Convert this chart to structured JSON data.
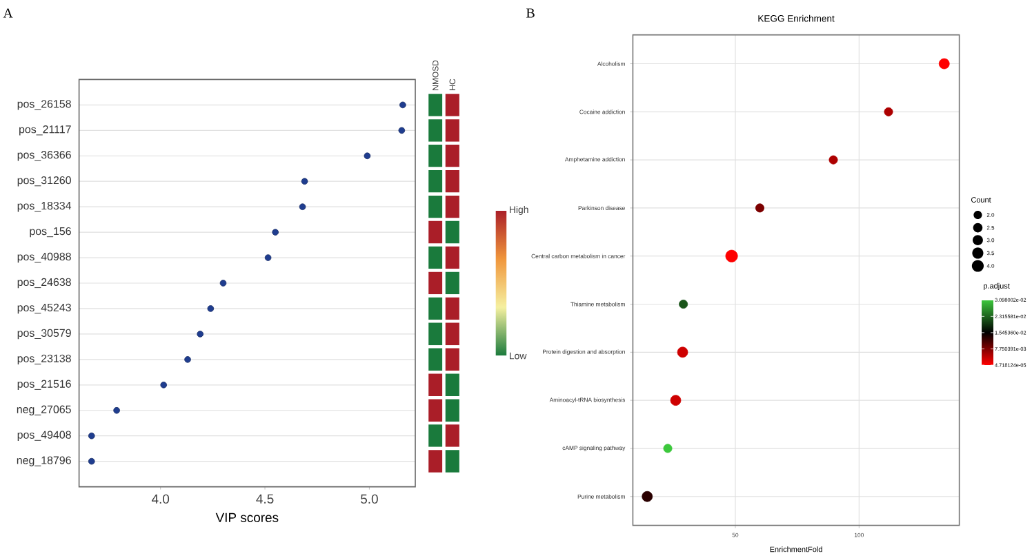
{
  "chart_data": [
    {
      "type": "scatter",
      "orientation": "horizontal",
      "annotations": [
        "A"
      ],
      "xlabel": "VIP scores",
      "categories": [
        "pos_26158",
        "pos_21117",
        "pos_36366",
        "pos_31260",
        "pos_18334",
        "pos_156",
        "pos_40988",
        "pos_24638",
        "pos_45243",
        "pos_30579",
        "pos_23138",
        "pos_21516",
        "neg_27065",
        "pos_49408",
        "neg_18796"
      ],
      "values": [
        5.16,
        5.155,
        4.99,
        4.69,
        4.68,
        4.55,
        4.515,
        4.3,
        4.24,
        4.19,
        4.13,
        4.015,
        3.79,
        3.67,
        3.67
      ],
      "color": "#1f3d8f",
      "marker": "circle",
      "grid": "y",
      "xlim": [
        3.61,
        5.22
      ],
      "xticks": [
        {
          "value": 4,
          "label": "4.0"
        },
        {
          "value": 4.5,
          "label": "4.5"
        },
        {
          "value": 5,
          "label": "5.0"
        }
      ]
    },
    {
      "type": "heatmap",
      "categories": [
        "NMOSD",
        "HC"
      ],
      "y_categories": [
        null,
        null,
        null,
        null,
        null,
        null,
        null,
        null,
        null,
        null,
        null,
        null,
        null,
        null,
        null
      ],
      "cells": [
        [
          0,
          1
        ],
        [
          0,
          1
        ],
        [
          0,
          1
        ],
        [
          0,
          1
        ],
        [
          0,
          1
        ],
        [
          1,
          0
        ],
        [
          0,
          1
        ],
        [
          1,
          0
        ],
        [
          0,
          1
        ],
        [
          0,
          1
        ],
        [
          0,
          1
        ],
        [
          1,
          0
        ],
        [
          1,
          0
        ],
        [
          0,
          1
        ],
        [
          1,
          0
        ]
      ],
      "clim": [
        0,
        1
      ],
      "cticks": [
        {
          "value": 0,
          "label": "Low"
        },
        {
          "value": 1,
          "label": "High"
        }
      ],
      "tick_labels": "x"
    },
    {
      "type": "bubble",
      "orientation": "horizontal",
      "title": "KEGG Enrichment",
      "xlabel": "EnrichmentFold",
      "annotations": [
        "B"
      ],
      "categories": [
        "Alcoholism",
        "Cocaine addiction",
        "Amphetamine addiction",
        "Parkinson disease",
        "Central carbon metabolism in cancer",
        "Thiamine metabolism",
        "Protein digestion and absorption",
        "Aminoacyl-tRNA biosynthesis",
        "cAMP signaling pathway",
        "Purine metabolism"
      ],
      "values": [
        134.4,
        111.9,
        89.6,
        59.9,
        48.5,
        29.0,
        28.7,
        25.9,
        22.7,
        14.4
      ],
      "sizes": [
        3,
        2,
        2,
        2,
        4,
        2,
        3,
        3,
        2,
        3
      ],
      "cvalues": [
        0.0001,
        0.005,
        0.005,
        0.008,
        0.0001,
        0.022,
        0.003,
        0.003,
        0.031,
        0.013
      ],
      "size_legend": [
        {
          "value": 2,
          "label": "2.0"
        },
        {
          "value": 2.5,
          "label": "2.5"
        },
        {
          "value": 3,
          "label": "3.0"
        },
        {
          "value": 3.5,
          "label": "3.5"
        },
        {
          "value": 4,
          "label": "4.0"
        }
      ],
      "legend_title": "Count",
      "clabel": "p.adjust",
      "clim": [
        4.718124e-05,
        0.03098002
      ],
      "cticks": [
        {
          "value": 0.03098002,
          "label": "3.098002e-02"
        },
        {
          "value": 0.02315581,
          "label": "2.315581e-02"
        },
        {
          "value": 0.0154536,
          "label": "1.545360e-02"
        },
        {
          "value": 0.007750391,
          "label": "7.750391e-03"
        },
        {
          "value": 4.718124e-05,
          "label": "4.718124e-05"
        }
      ],
      "xlim": [
        8.6,
        140.5
      ],
      "xticks": [
        50,
        100
      ],
      "grid": true,
      "marker": "circle"
    }
  ]
}
